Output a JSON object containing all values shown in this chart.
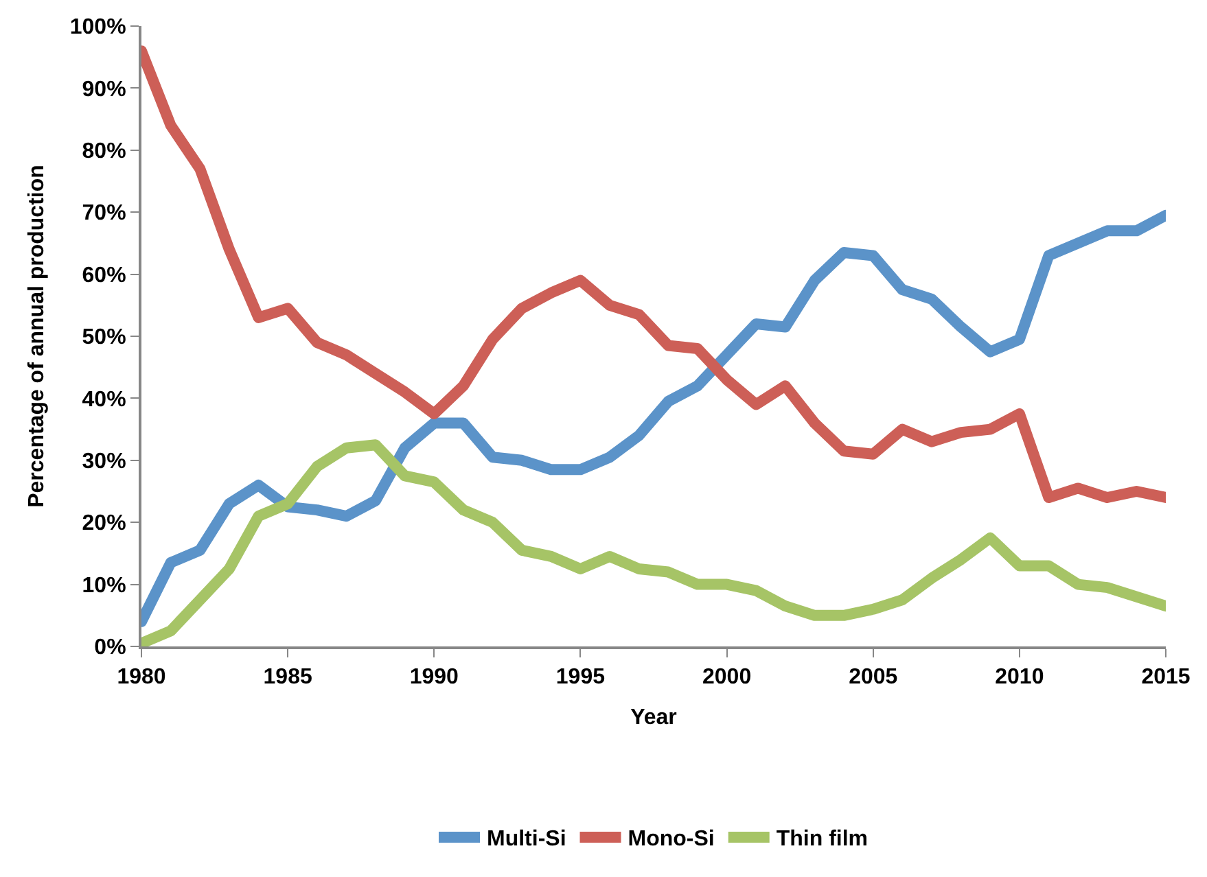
{
  "chart_data": {
    "type": "line",
    "xlabel": "Year",
    "ylabel": "Percentage of annual production",
    "x": [
      1980,
      1981,
      1982,
      1983,
      1984,
      1985,
      1986,
      1987,
      1988,
      1989,
      1990,
      1991,
      1992,
      1993,
      1994,
      1995,
      1996,
      1997,
      1998,
      1999,
      2000,
      2001,
      2002,
      2003,
      2004,
      2005,
      2006,
      2007,
      2008,
      2009,
      2010,
      2011,
      2012,
      2013,
      2014,
      2015
    ],
    "series": [
      {
        "name": "Multi-Si",
        "color": "#5b93c9",
        "values": [
          4,
          13.5,
          15.5,
          23,
          26,
          22.5,
          22,
          21,
          23.5,
          32,
          36,
          36,
          30.5,
          30,
          28.5,
          28.5,
          30.5,
          34,
          39.5,
          42,
          47,
          52,
          51.5,
          59,
          63.5,
          63,
          57.5,
          56,
          51.5,
          47.5,
          49.5,
          63,
          65,
          67,
          67,
          69.5
        ]
      },
      {
        "name": "Mono-Si",
        "color": "#cd5f57",
        "values": [
          96,
          84,
          77,
          64,
          53,
          54.5,
          49,
          47,
          44,
          41,
          37.5,
          42,
          49.5,
          54.5,
          57,
          59,
          55,
          53.5,
          48.5,
          48,
          43,
          39,
          42,
          36,
          31.5,
          31,
          35,
          33,
          34.5,
          35,
          37.5,
          24,
          25.5,
          24,
          25,
          24
        ]
      },
      {
        "name": "Thin film",
        "color": "#a6c466",
        "values": [
          0.5,
          2.5,
          7.5,
          12.5,
          21,
          23,
          29,
          32,
          32.5,
          27.5,
          26.5,
          22,
          20,
          15.5,
          14.5,
          12.5,
          14.5,
          12.5,
          12,
          10,
          10,
          9,
          6.5,
          5,
          5,
          6,
          7.5,
          11,
          14,
          17.5,
          13,
          13,
          10,
          9.5,
          8,
          6.5
        ]
      }
    ],
    "xlim": [
      1980,
      2015
    ],
    "xticks": [
      1980,
      1985,
      1990,
      1995,
      2000,
      2005,
      2010,
      2015
    ],
    "ylim": [
      0,
      100
    ],
    "yticks": [
      {
        "value": 0,
        "label": "0%"
      },
      {
        "value": 10,
        "label": "10%"
      },
      {
        "value": 20,
        "label": "20%"
      },
      {
        "value": 30,
        "label": "30%"
      },
      {
        "value": 40,
        "label": "40%"
      },
      {
        "value": 50,
        "label": "50%"
      },
      {
        "value": 60,
        "label": "60%"
      },
      {
        "value": 70,
        "label": "70%"
      },
      {
        "value": 80,
        "label": "80%"
      },
      {
        "value": 90,
        "label": "90%"
      },
      {
        "value": 100,
        "label": "100%"
      }
    ],
    "legend": "bottom",
    "marker": "none",
    "line_style": "solid"
  }
}
